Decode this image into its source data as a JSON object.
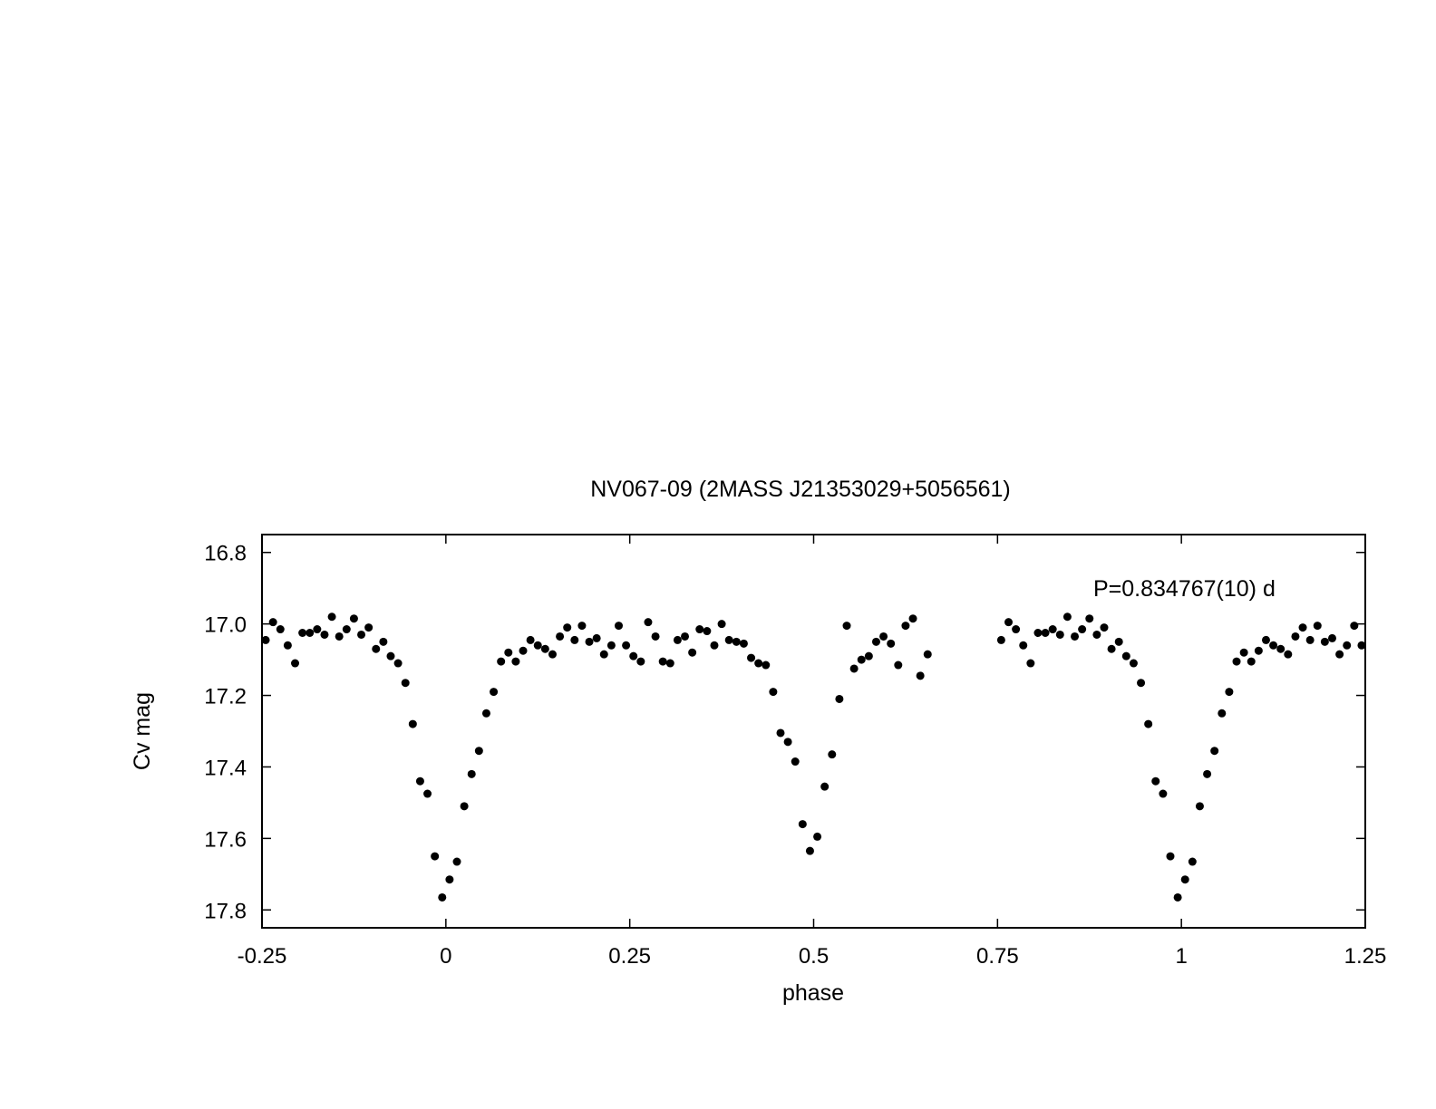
{
  "chart_data": {
    "type": "scatter",
    "title": "NV067-09 (2MASS J21353029+5056561)",
    "xlabel": "phase",
    "ylabel": "Cv mag",
    "annotation": "P=0.834767(10) d",
    "xlim": [
      -0.25,
      1.25
    ],
    "ylim": [
      17.85,
      16.75
    ],
    "y_inverted": true,
    "grid": false,
    "legend": "none",
    "x_ticks": [
      {
        "value": -0.25,
        "label": "-0.25"
      },
      {
        "value": 0,
        "label": "0"
      },
      {
        "value": 0.25,
        "label": "0.25"
      },
      {
        "value": 0.5,
        "label": "0.5"
      },
      {
        "value": 0.75,
        "label": "0.75"
      },
      {
        "value": 1,
        "label": "1"
      },
      {
        "value": 1.25,
        "label": "1.25"
      }
    ],
    "y_ticks": [
      {
        "value": 16.8,
        "label": "16.8"
      },
      {
        "value": 17.0,
        "label": "17.0"
      },
      {
        "value": 17.2,
        "label": "17.2"
      },
      {
        "value": 17.4,
        "label": "17.4"
      },
      {
        "value": 17.6,
        "label": "17.6"
      },
      {
        "value": 17.8,
        "label": "17.8"
      }
    ],
    "marker_color": "#000000",
    "points": [
      [
        -0.245,
        17.045
      ],
      [
        -0.235,
        16.995
      ],
      [
        -0.225,
        17.015
      ],
      [
        -0.215,
        17.06
      ],
      [
        -0.205,
        17.11
      ],
      [
        -0.195,
        17.025
      ],
      [
        -0.185,
        17.025
      ],
      [
        -0.175,
        17.015
      ],
      [
        -0.165,
        17.03
      ],
      [
        -0.155,
        16.98
      ],
      [
        -0.145,
        17.035
      ],
      [
        -0.135,
        17.015
      ],
      [
        -0.125,
        16.985
      ],
      [
        -0.115,
        17.03
      ],
      [
        -0.105,
        17.01
      ],
      [
        -0.095,
        17.07
      ],
      [
        -0.085,
        17.05
      ],
      [
        -0.075,
        17.09
      ],
      [
        -0.065,
        17.11
      ],
      [
        -0.055,
        17.165
      ],
      [
        -0.045,
        17.28
      ],
      [
        -0.035,
        17.44
      ],
      [
        -0.025,
        17.475
      ],
      [
        -0.015,
        17.65
      ],
      [
        -0.005,
        17.765
      ],
      [
        0.005,
        17.715
      ],
      [
        0.015,
        17.665
      ],
      [
        0.025,
        17.51
      ],
      [
        0.035,
        17.42
      ],
      [
        0.045,
        17.355
      ],
      [
        0.055,
        17.25
      ],
      [
        0.065,
        17.19
      ],
      [
        0.075,
        17.105
      ],
      [
        0.085,
        17.08
      ],
      [
        0.095,
        17.105
      ],
      [
        0.105,
        17.075
      ],
      [
        0.115,
        17.045
      ],
      [
        0.125,
        17.06
      ],
      [
        0.135,
        17.07
      ],
      [
        0.145,
        17.085
      ],
      [
        0.155,
        17.035
      ],
      [
        0.165,
        17.01
      ],
      [
        0.175,
        17.045
      ],
      [
        0.185,
        17.005
      ],
      [
        0.195,
        17.05
      ],
      [
        0.205,
        17.04
      ],
      [
        0.215,
        17.085
      ],
      [
        0.225,
        17.06
      ],
      [
        0.235,
        17.005
      ],
      [
        0.245,
        17.06
      ],
      [
        0.255,
        17.09
      ],
      [
        0.265,
        17.105
      ],
      [
        0.275,
        16.995
      ],
      [
        0.285,
        17.035
      ],
      [
        0.295,
        17.105
      ],
      [
        0.305,
        17.11
      ],
      [
        0.315,
        17.045
      ],
      [
        0.325,
        17.035
      ],
      [
        0.335,
        17.08
      ],
      [
        0.345,
        17.015
      ],
      [
        0.355,
        17.02
      ],
      [
        0.365,
        17.06
      ],
      [
        0.375,
        17.0
      ],
      [
        0.385,
        17.045
      ],
      [
        0.395,
        17.05
      ],
      [
        0.405,
        17.055
      ],
      [
        0.415,
        17.095
      ],
      [
        0.425,
        17.11
      ],
      [
        0.435,
        17.115
      ],
      [
        0.445,
        17.19
      ],
      [
        0.455,
        17.305
      ],
      [
        0.465,
        17.33
      ],
      [
        0.475,
        17.385
      ],
      [
        0.485,
        17.56
      ],
      [
        0.495,
        17.635
      ],
      [
        0.505,
        17.595
      ],
      [
        0.515,
        17.455
      ],
      [
        0.525,
        17.365
      ],
      [
        0.535,
        17.21
      ],
      [
        0.545,
        17.005
      ],
      [
        0.555,
        17.125
      ],
      [
        0.565,
        17.1
      ],
      [
        0.575,
        17.09
      ],
      [
        0.585,
        17.05
      ],
      [
        0.595,
        17.035
      ],
      [
        0.605,
        17.055
      ],
      [
        0.615,
        17.115
      ],
      [
        0.625,
        17.005
      ],
      [
        0.635,
        16.985
      ],
      [
        0.645,
        17.145
      ],
      [
        0.655,
        17.085
      ],
      [
        0.755,
        17.045
      ],
      [
        0.765,
        16.995
      ],
      [
        0.775,
        17.015
      ],
      [
        0.785,
        17.06
      ],
      [
        0.795,
        17.11
      ],
      [
        0.805,
        17.025
      ],
      [
        0.815,
        17.025
      ],
      [
        0.825,
        17.015
      ],
      [
        0.835,
        17.03
      ],
      [
        0.845,
        16.98
      ],
      [
        0.855,
        17.035
      ],
      [
        0.865,
        17.015
      ],
      [
        0.875,
        16.985
      ],
      [
        0.885,
        17.03
      ],
      [
        0.895,
        17.01
      ],
      [
        0.905,
        17.07
      ],
      [
        0.915,
        17.05
      ],
      [
        0.925,
        17.09
      ],
      [
        0.935,
        17.11
      ],
      [
        0.945,
        17.165
      ],
      [
        0.955,
        17.28
      ],
      [
        0.965,
        17.44
      ],
      [
        0.975,
        17.475
      ],
      [
        0.985,
        17.65
      ],
      [
        0.995,
        17.765
      ],
      [
        1.005,
        17.715
      ],
      [
        1.015,
        17.665
      ],
      [
        1.025,
        17.51
      ],
      [
        1.035,
        17.42
      ],
      [
        1.045,
        17.355
      ],
      [
        1.055,
        17.25
      ],
      [
        1.065,
        17.19
      ],
      [
        1.075,
        17.105
      ],
      [
        1.085,
        17.08
      ],
      [
        1.095,
        17.105
      ],
      [
        1.105,
        17.075
      ],
      [
        1.115,
        17.045
      ],
      [
        1.125,
        17.06
      ],
      [
        1.135,
        17.07
      ],
      [
        1.145,
        17.085
      ],
      [
        1.155,
        17.035
      ],
      [
        1.165,
        17.01
      ],
      [
        1.175,
        17.045
      ],
      [
        1.185,
        17.005
      ],
      [
        1.195,
        17.05
      ],
      [
        1.205,
        17.04
      ],
      [
        1.215,
        17.085
      ],
      [
        1.225,
        17.06
      ],
      [
        1.235,
        17.005
      ],
      [
        1.245,
        17.06
      ]
    ]
  }
}
